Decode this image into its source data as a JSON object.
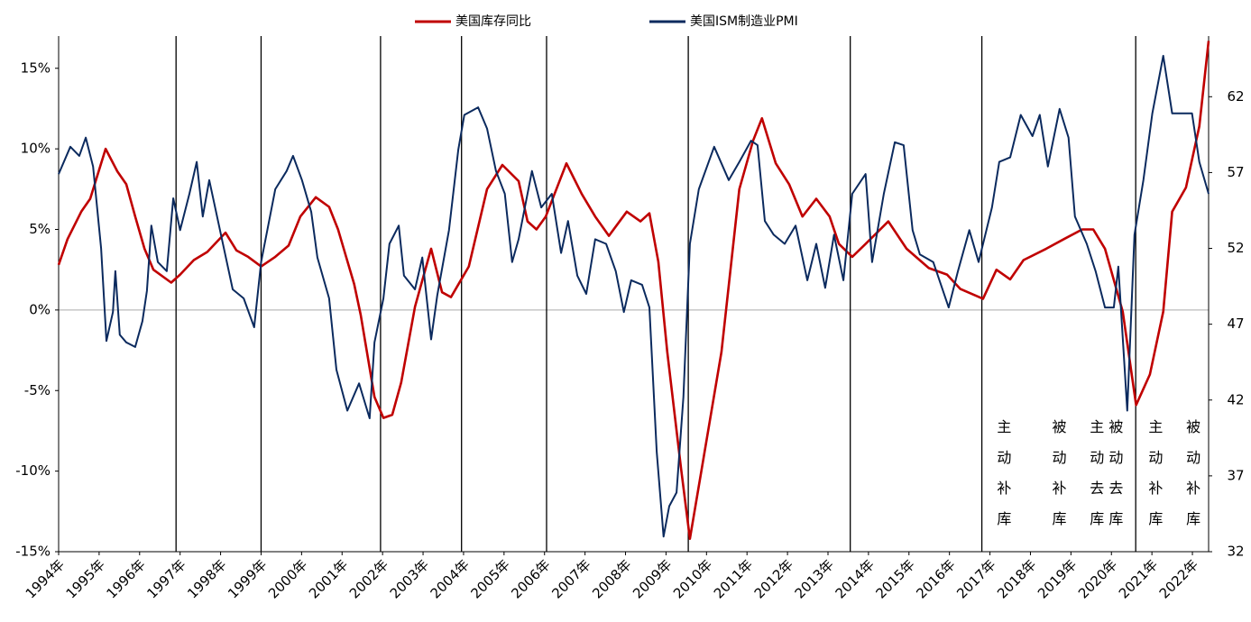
{
  "chart_data": {
    "type": "line",
    "series": [
      {
        "name": "美国库存同比",
        "color": "#c00000",
        "axis": "y",
        "x": [
          1994.0,
          1994.22,
          1994.56,
          1994.78,
          1995.16,
          1995.45,
          1995.67,
          1995.89,
          1996.12,
          1996.34,
          1996.78,
          1997.0,
          1997.34,
          1997.67,
          1998.12,
          1998.39,
          1998.68,
          1999.0,
          1999.35,
          1999.68,
          1999.97,
          2000.35,
          2000.68,
          2000.9,
          2001.3,
          2001.46,
          2001.8,
          2002.02,
          2002.24,
          2002.46,
          2002.8,
          2003.2,
          2003.47,
          2003.69,
          2004.13,
          2004.58,
          2004.96,
          2005.36,
          2005.58,
          2005.8,
          2006.03,
          2006.54,
          2006.92,
          2007.25,
          2007.59,
          2008.03,
          2008.37,
          2008.59,
          2008.81,
          2009.03,
          2009.37,
          2009.59,
          2009.92,
          2010.37,
          2010.81,
          2011.15,
          2011.37,
          2011.71,
          2012.04,
          2012.37,
          2012.71,
          2013.04,
          2013.27,
          2013.6,
          2013.93,
          2014.49,
          2014.94,
          2015.49,
          2015.94,
          2016.27,
          2016.83,
          2017.16,
          2017.5,
          2017.83,
          2018.39,
          2018.83,
          2019.28,
          2019.55,
          2019.84,
          2020.28,
          2020.61,
          2020.95,
          2021.28,
          2021.5,
          2021.84,
          2022.17,
          2022.4
        ],
        "values": [
          2.8,
          4.4,
          6.1,
          6.9,
          10.0,
          8.6,
          7.8,
          5.8,
          3.8,
          2.5,
          1.7,
          2.2,
          3.1,
          3.6,
          4.8,
          3.7,
          3.3,
          2.7,
          3.3,
          4.0,
          5.8,
          7.0,
          6.4,
          5.0,
          1.6,
          -0.3,
          -5.4,
          -6.7,
          -6.5,
          -4.5,
          0.2,
          3.8,
          1.1,
          0.8,
          2.7,
          7.5,
          9.0,
          8.0,
          5.5,
          5.0,
          5.8,
          9.1,
          7.2,
          5.8,
          4.6,
          6.1,
          5.5,
          6.0,
          3.0,
          -2.6,
          -9.8,
          -14.2,
          -9.3,
          -2.6,
          7.5,
          10.5,
          11.9,
          9.1,
          7.8,
          5.8,
          6.9,
          5.8,
          4.1,
          3.3,
          4.1,
          5.5,
          3.8,
          2.6,
          2.2,
          1.3,
          0.7,
          2.5,
          1.9,
          3.1,
          3.8,
          4.4,
          5.0,
          5.0,
          3.8,
          -0.1,
          -5.9,
          -4.0,
          -0.1,
          6.1,
          7.6,
          11.4,
          16.7
        ]
      },
      {
        "name": "美国ISM制造业PMI",
        "color": "#0b2a5e",
        "axis": "y2",
        "x": [
          1994.0,
          1994.29,
          1994.51,
          1994.67,
          1994.85,
          1995.05,
          1995.18,
          1995.34,
          1995.4,
          1995.51,
          1995.67,
          1995.89,
          1996.07,
          1996.18,
          1996.29,
          1996.45,
          1996.67,
          1996.83,
          1997.0,
          1997.23,
          1997.41,
          1997.56,
          1997.72,
          1998.01,
          1998.3,
          1998.57,
          1998.83,
          1999.0,
          1999.35,
          1999.63,
          1999.79,
          2000.01,
          2000.24,
          2000.39,
          2000.68,
          2000.86,
          2001.13,
          2001.42,
          2001.68,
          2001.8,
          2002.02,
          2002.17,
          2002.4,
          2002.53,
          2002.8,
          2002.98,
          2003.2,
          2003.35,
          2003.64,
          2003.87,
          2004.02,
          2004.36,
          2004.58,
          2004.8,
          2005.02,
          2005.2,
          2005.36,
          2005.69,
          2005.92,
          2006.18,
          2006.41,
          2006.58,
          2006.81,
          2007.03,
          2007.25,
          2007.52,
          2007.76,
          2007.96,
          2008.14,
          2008.41,
          2008.59,
          2008.77,
          2008.94,
          2009.08,
          2009.26,
          2009.43,
          2009.59,
          2009.81,
          2010.19,
          2010.55,
          2010.81,
          2011.1,
          2011.26,
          2011.44,
          2011.66,
          2011.93,
          2012.2,
          2012.49,
          2012.71,
          2012.93,
          2013.15,
          2013.38,
          2013.6,
          2013.93,
          2014.09,
          2014.38,
          2014.65,
          2014.87,
          2015.09,
          2015.27,
          2015.6,
          2015.98,
          2016.21,
          2016.49,
          2016.72,
          2017.05,
          2017.23,
          2017.5,
          2017.76,
          2018.05,
          2018.23,
          2018.43,
          2018.72,
          2018.94,
          2019.1,
          2019.39,
          2019.61,
          2019.84,
          2020.06,
          2020.17,
          2020.39,
          2020.57,
          2020.79,
          2021.01,
          2021.28,
          2021.5,
          2021.77,
          2021.99,
          2022.17,
          2022.4
        ],
        "values": [
          56.9,
          58.7,
          58.1,
          59.3,
          57.4,
          52.0,
          45.9,
          47.8,
          50.5,
          46.3,
          45.8,
          45.5,
          47.2,
          49.2,
          53.5,
          51.1,
          50.5,
          55.3,
          53.2,
          55.6,
          57.7,
          54.1,
          56.5,
          52.9,
          49.3,
          48.7,
          46.8,
          51.1,
          55.9,
          57.1,
          58.1,
          56.5,
          54.4,
          51.4,
          48.7,
          44.0,
          41.3,
          43.1,
          40.8,
          45.8,
          48.7,
          52.3,
          53.5,
          50.2,
          49.3,
          51.4,
          46.0,
          48.9,
          53.2,
          58.5,
          60.8,
          61.3,
          59.9,
          57.1,
          55.6,
          51.1,
          52.6,
          57.1,
          54.7,
          55.6,
          51.7,
          53.8,
          50.2,
          49.0,
          52.6,
          52.3,
          50.5,
          47.8,
          49.9,
          49.6,
          48.1,
          38.6,
          33.0,
          35.0,
          35.9,
          42.2,
          52.3,
          55.9,
          58.7,
          56.5,
          57.7,
          59.1,
          58.8,
          53.8,
          52.9,
          52.3,
          53.5,
          49.9,
          52.3,
          49.4,
          52.9,
          49.9,
          55.6,
          56.9,
          51.1,
          55.6,
          59.0,
          58.8,
          53.2,
          51.6,
          51.1,
          48.1,
          50.5,
          53.2,
          51.1,
          54.7,
          57.7,
          58.0,
          60.8,
          59.4,
          60.8,
          57.4,
          61.2,
          59.3,
          54.1,
          52.3,
          50.5,
          48.1,
          48.1,
          50.8,
          41.3,
          52.9,
          56.5,
          60.9,
          64.7,
          60.9,
          60.9,
          60.9,
          57.7,
          55.6
        ]
      }
    ],
    "xlim": [
      1994,
      2022.4
    ],
    "xticks": [
      {
        "value": 1994,
        "label": "1994年"
      },
      {
        "value": 1995,
        "label": "1995年"
      },
      {
        "value": 1996,
        "label": "1996年"
      },
      {
        "value": 1997,
        "label": "1997年"
      },
      {
        "value": 1998,
        "label": "1998年"
      },
      {
        "value": 1999,
        "label": "1999年"
      },
      {
        "value": 2000,
        "label": "2000年"
      },
      {
        "value": 2001,
        "label": "2001年"
      },
      {
        "value": 2002,
        "label": "2002年"
      },
      {
        "value": 2003,
        "label": "2003年"
      },
      {
        "value": 2004,
        "label": "2004年"
      },
      {
        "value": 2005,
        "label": "2005年"
      },
      {
        "value": 2006,
        "label": "2006年"
      },
      {
        "value": 2007,
        "label": "2007年"
      },
      {
        "value": 2008,
        "label": "2008年"
      },
      {
        "value": 2009,
        "label": "2009年"
      },
      {
        "value": 2010,
        "label": "2010年"
      },
      {
        "value": 2011,
        "label": "2011年"
      },
      {
        "value": 2012,
        "label": "2012年"
      },
      {
        "value": 2013,
        "label": "2013年"
      },
      {
        "value": 2014,
        "label": "2014年"
      },
      {
        "value": 2015,
        "label": "2015年"
      },
      {
        "value": 2016,
        "label": "2016年"
      },
      {
        "value": 2017,
        "label": "2017年"
      },
      {
        "value": 2018,
        "label": "2018年"
      },
      {
        "value": 2019,
        "label": "2019年"
      },
      {
        "value": 2020,
        "label": "2020年"
      },
      {
        "value": 2021,
        "label": "2021年"
      },
      {
        "value": 2022,
        "label": "2022年"
      }
    ],
    "ylim": [
      -15,
      17
    ],
    "yticks": [
      {
        "value": -15,
        "label": "-15%"
      },
      {
        "value": -10,
        "label": "-10%"
      },
      {
        "value": -5,
        "label": "-5%"
      },
      {
        "value": 0,
        "label": "0%"
      },
      {
        "value": 5,
        "label": "5%"
      },
      {
        "value": 10,
        "label": "10%"
      },
      {
        "value": 15,
        "label": "15%"
      }
    ],
    "y2lim": [
      32,
      66
    ],
    "y2ticks": [
      32,
      37,
      42,
      47,
      52,
      57,
      62
    ],
    "dividers": [
      1996.9,
      1999.0,
      2001.95,
      2003.95,
      2006.05,
      2009.55,
      2013.55,
      2016.8,
      2020.6
    ],
    "annotations": [
      {
        "text": "主动补库",
        "x": 2017.32
      },
      {
        "text": "被动补库",
        "x": 2018.68
      },
      {
        "text": "主动去库",
        "x": 2019.61
      },
      {
        "text": "被动去库",
        "x": 2020.08
      },
      {
        "text": "主动补库",
        "x": 2021.06
      },
      {
        "text": "被动补库",
        "x": 2021.99
      }
    ],
    "legend": "top"
  }
}
